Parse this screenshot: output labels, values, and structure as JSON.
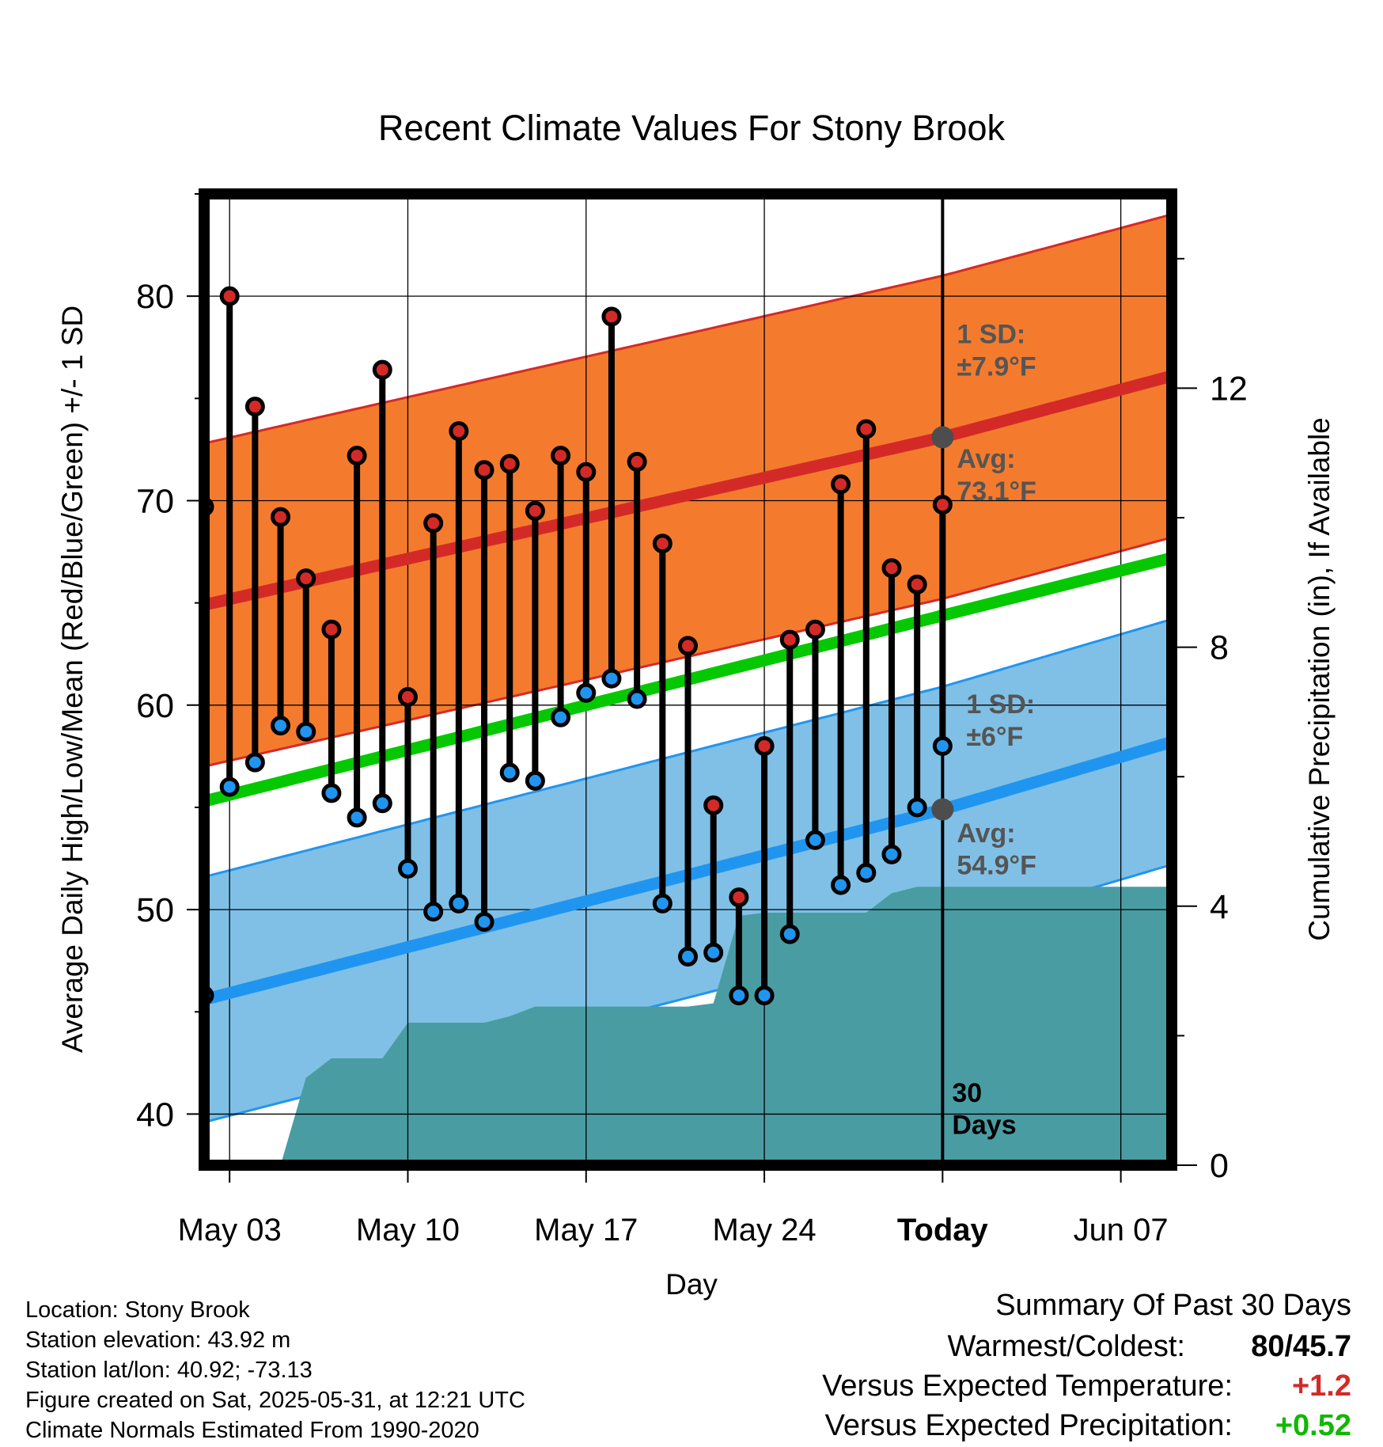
{
  "chart_data": {
    "type": "line",
    "title": "Recent Climate Values For Stony Brook",
    "xlabel": "Day",
    "ylabel": "Average Daily High/Low/Mean (Red/Blue/Green) +/- 1 SD",
    "y2label": "Cumulative Precipitation (in), If Available",
    "ylim": [
      37.5,
      85
    ],
    "y2lim": [
      0,
      15
    ],
    "x_ticks": [
      "May 03",
      "May 10",
      "May 17",
      "May 24",
      "Today",
      "Jun 07"
    ],
    "y_ticks": [
      40,
      50,
      60,
      70,
      80
    ],
    "y2_ticks": [
      0,
      4,
      8,
      12
    ],
    "grid": true,
    "today_label": "Today",
    "days_label": [
      "30",
      "Days"
    ],
    "days": [
      "May 02",
      "May 03",
      "May 04",
      "May 05",
      "May 06",
      "May 07",
      "May 08",
      "May 09",
      "May 10",
      "May 11",
      "May 12",
      "May 13",
      "May 14",
      "May 15",
      "May 16",
      "May 17",
      "May 18",
      "May 19",
      "May 20",
      "May 21",
      "May 22",
      "May 23",
      "May 24",
      "May 25",
      "May 26",
      "May 27",
      "May 28",
      "May 29",
      "May 30",
      "May 31"
    ],
    "observed_high": [
      69.7,
      80.0,
      74.6,
      69.2,
      66.2,
      63.7,
      72.2,
      76.4,
      60.4,
      68.9,
      73.4,
      71.5,
      71.8,
      69.5,
      72.2,
      71.4,
      79.0,
      71.9,
      67.9,
      62.9,
      55.1,
      50.6,
      58.0,
      63.2,
      63.7,
      70.8,
      73.5,
      66.7,
      65.9,
      69.8
    ],
    "observed_low": [
      45.8,
      56.0,
      57.2,
      59.0,
      58.7,
      55.7,
      54.5,
      55.2,
      52.0,
      49.9,
      50.3,
      49.4,
      56.7,
      56.3,
      59.4,
      60.6,
      61.3,
      60.3,
      50.3,
      47.7,
      47.9,
      45.8,
      45.8,
      48.8,
      53.4,
      51.2,
      51.8,
      52.7,
      55.0,
      58.0
    ],
    "normal_high": {
      "x": [
        "May 02",
        "Today",
        "Jun 09"
      ],
      "values": [
        64.9,
        73.1,
        76.1
      ],
      "sd": 7.9,
      "sd_label": [
        "1 SD:",
        "±7.9°F"
      ],
      "avg_label": [
        "Avg:",
        "73.1°F"
      ]
    },
    "normal_low": {
      "x": [
        "May 02",
        "Today",
        "Jun 09"
      ],
      "values": [
        45.6,
        54.9,
        58.2
      ],
      "sd": 6.0,
      "sd_label": [
        "1 SD:",
        "±6°F"
      ],
      "avg_label": [
        "Avg:",
        "54.9°F"
      ]
    },
    "normal_mean": {
      "x": [
        "May 02",
        "Jun 09"
      ],
      "values": [
        55.3,
        67.2
      ]
    },
    "cumulative_precip": {
      "x": [
        "May 02",
        "May 03",
        "May 04",
        "May 05",
        "May 06",
        "May 07",
        "May 08",
        "May 09",
        "May 10",
        "May 11",
        "May 12",
        "May 13",
        "May 14",
        "May 15",
        "May 16",
        "May 17",
        "May 18",
        "May 19",
        "May 20",
        "May 21",
        "May 22",
        "May 23",
        "May 24",
        "May 25",
        "May 26",
        "May 27",
        "May 28",
        "May 29",
        "May 30",
        "May 31",
        "Jun 09"
      ],
      "values": [
        0.0,
        0.0,
        0.0,
        0.0,
        1.35,
        1.65,
        1.65,
        1.65,
        2.2,
        2.2,
        2.2,
        2.2,
        2.3,
        2.45,
        2.45,
        2.45,
        2.45,
        2.45,
        2.45,
        2.45,
        2.5,
        3.85,
        3.9,
        3.9,
        3.9,
        3.9,
        3.9,
        4.2,
        4.3,
        4.3,
        4.3
      ]
    },
    "colors": {
      "high_band": "#f47b2e",
      "high_line": "#d42a27",
      "low_band": "#80c0e6",
      "low_line": "#2095f0",
      "mean_line": "#05c800",
      "precip": "#4a9ca3",
      "high_marker": "#d42a27",
      "low_marker": "#2095f0",
      "today_marker": "#4d4d4d",
      "label_gray": "#555555"
    }
  },
  "station": {
    "location": "Location: Stony Brook",
    "elevation": "Station elevation: 43.92 m",
    "latlon": "Station lat/lon: 40.92; -73.13",
    "created": "Figure created on Sat, 2025-05-31, at 12:21 UTC",
    "normals": "Climate Normals Estimated From 1990-2020"
  },
  "summary": {
    "heading": "Summary Of Past 30 Days",
    "warmest_label": "Warmest/Coldest:",
    "warmest_value": "80/45.7",
    "temp_label": "Versus Expected Temperature:",
    "temp_value": "+1.2",
    "temp_color": "#d42a27",
    "precip_label": "Versus Expected Precipitation:",
    "precip_value": "+0.52",
    "precip_color": "#11b800"
  }
}
